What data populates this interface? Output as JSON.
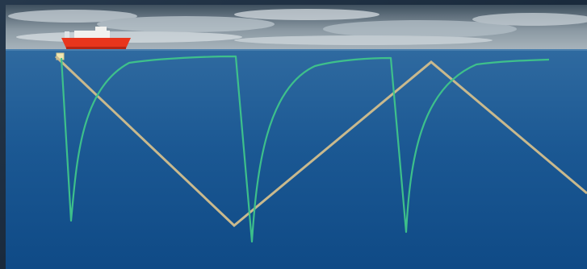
{
  "scene": {
    "sky_colors": {
      "top": "#3e4f5e",
      "mid": "#8a98a2",
      "cloud": "#c9d2d8",
      "horizon": "#a8b4bc"
    },
    "ocean_colors": {
      "surface": "#2f6aa0",
      "mid": "#1b5893",
      "deep": "#0f4a86"
    },
    "frame_color": "#1e2f43",
    "vessel": {
      "hull_color": "#e8351c",
      "deck_color": "#f1f1ee"
    },
    "float_path": {
      "color": "#c9b98d"
    },
    "profile_trace": {
      "color": "#3fc58a"
    }
  }
}
